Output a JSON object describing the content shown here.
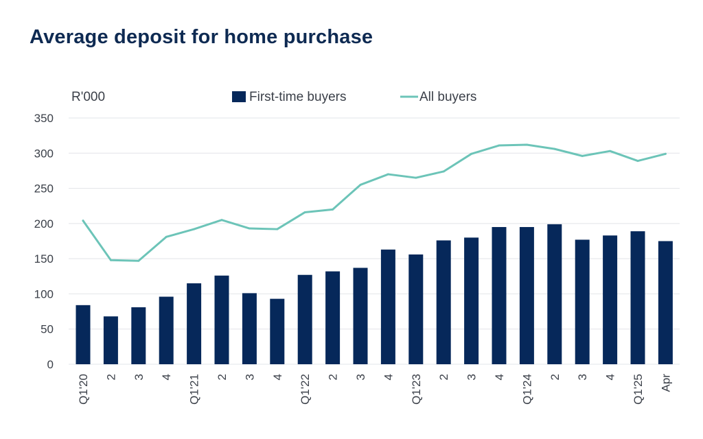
{
  "colors": {
    "bar": "#06285a",
    "line": "#6cc4b8",
    "grid": "#e2e4e8",
    "title": "#0e2a52",
    "text": "#3a3f48"
  },
  "chart_data": {
    "type": "bar",
    "title": "Average deposit for home purchase",
    "ylabel": "R'000",
    "xlabel": "",
    "ylim": [
      0,
      350
    ],
    "yticks": [
      0,
      50,
      100,
      150,
      200,
      250,
      300,
      350
    ],
    "grid": true,
    "legend_position": "top",
    "categories": [
      "Q1'20",
      "2",
      "3",
      "4",
      "Q1'21",
      "2",
      "3",
      "4",
      "Q1'22",
      "2",
      "3",
      "4",
      "Q1'23",
      "2",
      "3",
      "4",
      "Q1'24",
      "2",
      "3",
      "4",
      "Q1'25",
      "Apr"
    ],
    "series": [
      {
        "name": "First-time buyers",
        "type": "bar",
        "values": [
          84,
          68,
          81,
          96,
          115,
          126,
          101,
          93,
          127,
          132,
          137,
          163,
          156,
          176,
          180,
          195,
          195,
          199,
          177,
          183,
          189,
          175
        ]
      },
      {
        "name": "All buyers",
        "type": "line",
        "values": [
          204,
          148,
          147,
          181,
          192,
          205,
          193,
          192,
          216,
          220,
          255,
          270,
          265,
          274,
          299,
          311,
          312,
          306,
          296,
          303,
          289,
          299
        ]
      }
    ]
  }
}
